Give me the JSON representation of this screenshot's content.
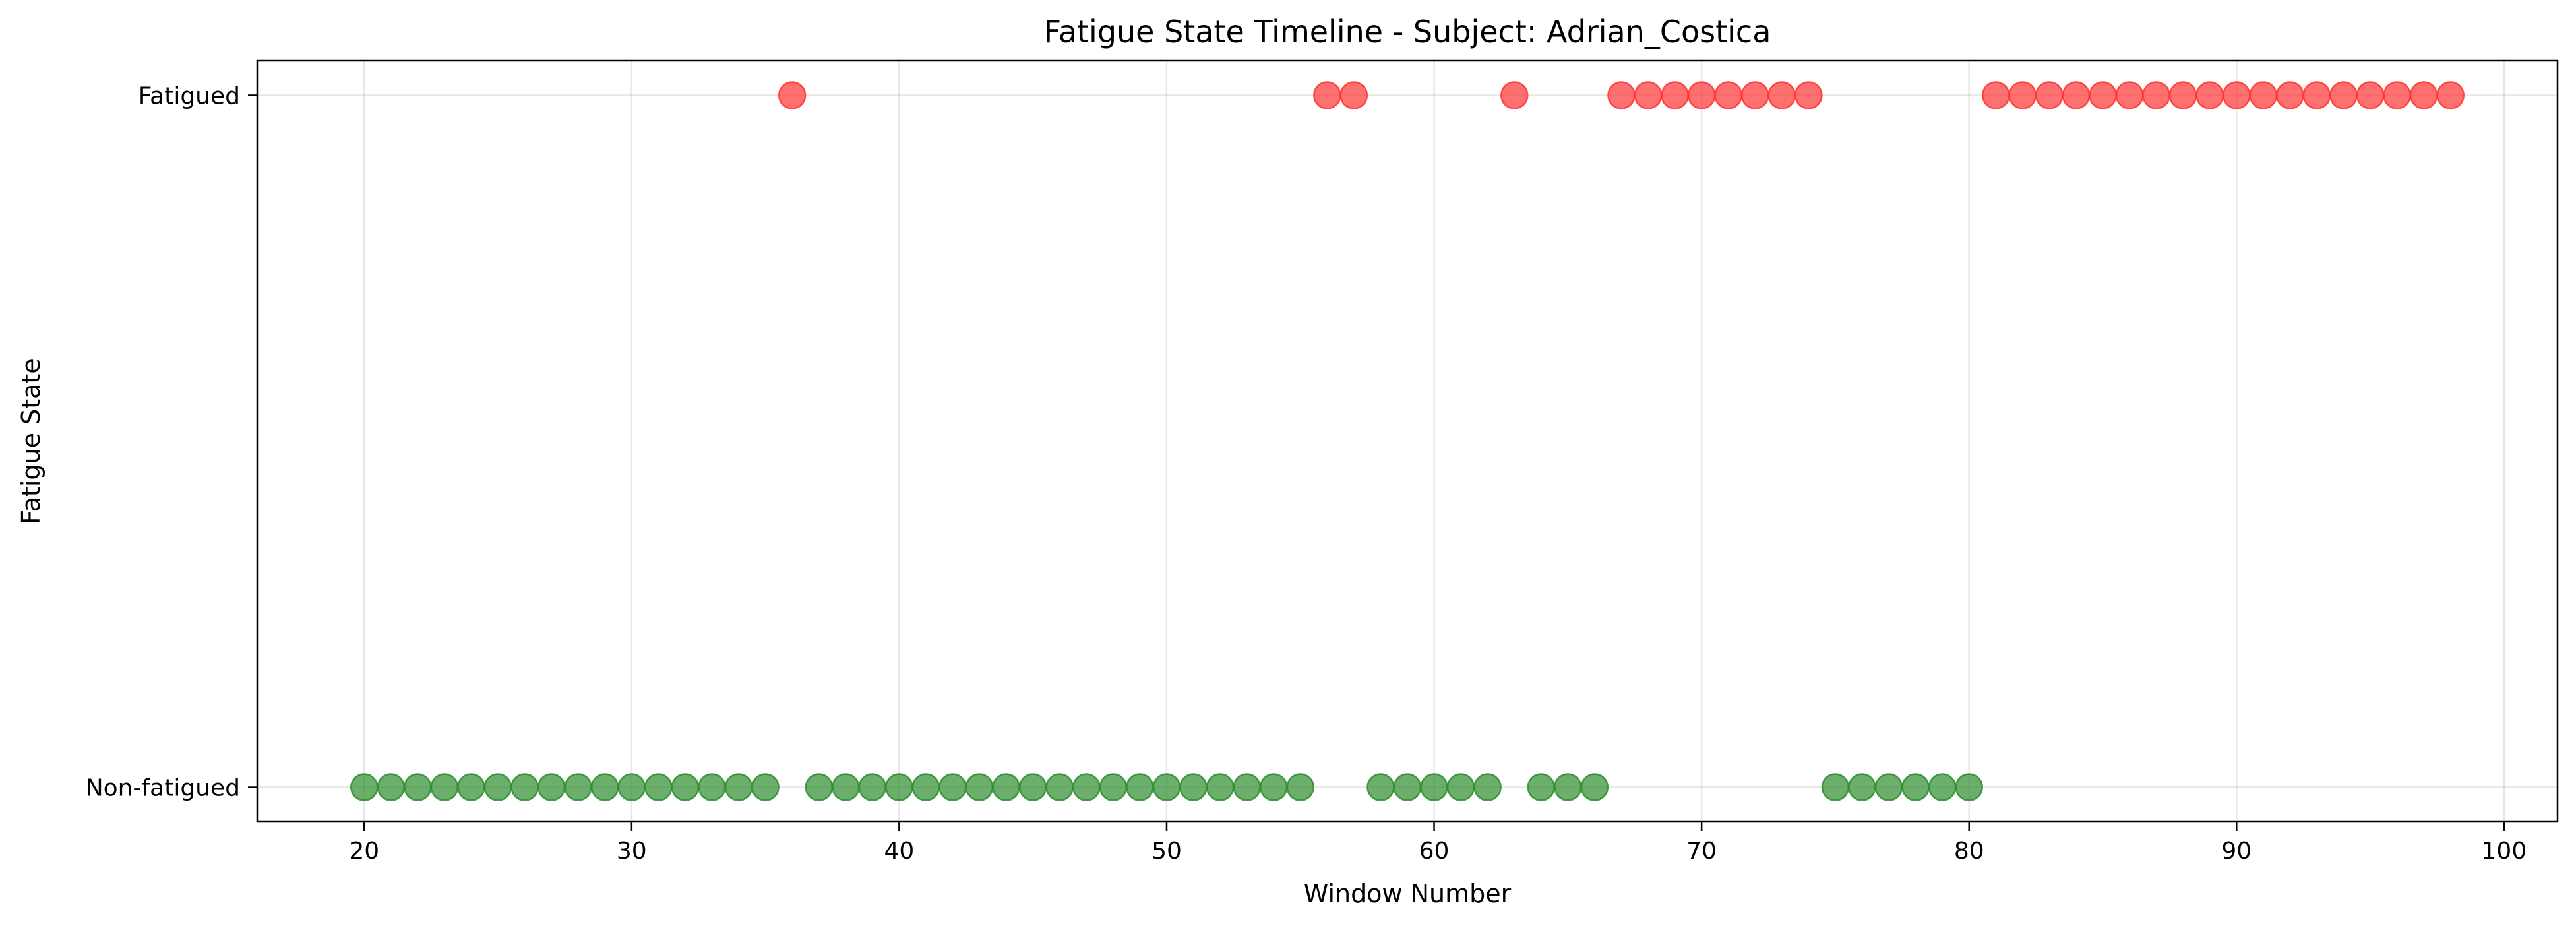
{
  "chart_data": {
    "type": "scatter",
    "title": "Fatigue State Timeline - Subject: Adrian_Costica",
    "xlabel": "Window Number",
    "ylabel": "Fatigue State",
    "xlim": [
      16,
      102
    ],
    "ylim": [
      -0.05,
      1.05
    ],
    "xticks": [
      20,
      30,
      40,
      50,
      60,
      70,
      80,
      90,
      100
    ],
    "yticks": [
      {
        "value": 0,
        "label": "Non-fatigued"
      },
      {
        "value": 1,
        "label": "Fatigued"
      }
    ],
    "grid": true,
    "series": [
      {
        "state": 0,
        "color": "#2e8b2e",
        "x": [
          20,
          21,
          22,
          23,
          24,
          25,
          26,
          27,
          28,
          29,
          30,
          31,
          32,
          33,
          34,
          35,
          37,
          38,
          39,
          40,
          41,
          42,
          43,
          44,
          45,
          46,
          47,
          48,
          49,
          50,
          51,
          52,
          53,
          54,
          55,
          58,
          59,
          60,
          61,
          62,
          64,
          65,
          66,
          75,
          76,
          77,
          78,
          79,
          80
        ]
      },
      {
        "state": 1,
        "color": "#ff3333",
        "x": [
          36,
          56,
          57,
          63,
          67,
          68,
          69,
          70,
          71,
          72,
          73,
          74,
          81,
          82,
          83,
          84,
          85,
          86,
          87,
          88,
          89,
          90,
          91,
          92,
          93,
          94,
          95,
          96,
          97,
          98
        ]
      }
    ]
  }
}
